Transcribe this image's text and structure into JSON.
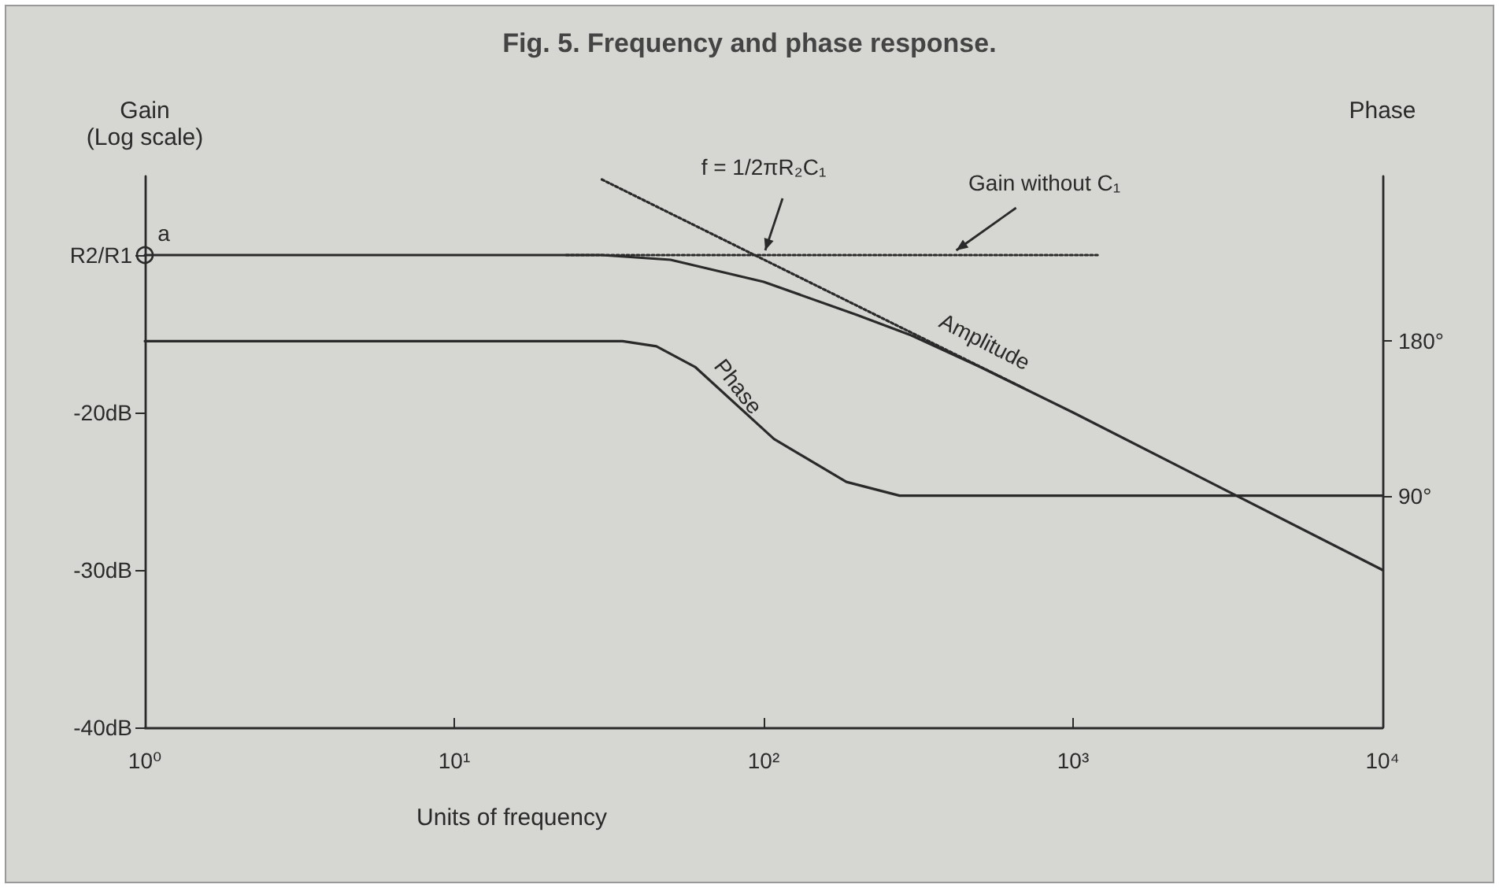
{
  "chart_data": {
    "type": "line",
    "title": "Fig. 5. Frequency and phase response.",
    "xlabel": "Units of frequency",
    "ylabel": "Gain\n(Log scale)",
    "y2label": "Phase",
    "log": "x",
    "xlim": [
      1,
      10000
    ],
    "xticks": [
      {
        "value": 1,
        "label": "10⁰"
      },
      {
        "value": 10,
        "label": "10¹"
      },
      {
        "value": 100,
        "label": "10²"
      },
      {
        "value": 1000,
        "label": "10³"
      },
      {
        "value": 10000,
        "label": "10⁴"
      }
    ],
    "ylim": [
      -40,
      -5
    ],
    "yticks": [
      {
        "value": -40,
        "label": "-40dB"
      },
      {
        "value": -30,
        "label": "-30dB"
      },
      {
        "value": -20,
        "label": "-20dB"
      },
      {
        "value": -10,
        "label": "R2/R1"
      }
    ],
    "y2lim": [
      -45,
      276
    ],
    "y2ticks": [
      {
        "value": 90,
        "label": "90°"
      },
      {
        "value": 180,
        "label": "180°"
      }
    ],
    "grid": false,
    "legend": false,
    "marker": "none",
    "series": [
      {
        "name": "Amplitude",
        "color": "#2a2a2a",
        "line_style": "solid",
        "x": [
          1,
          10,
          30,
          50,
          100,
          200,
          300,
          500,
          1000,
          10000
        ],
        "values": [
          -10,
          -10,
          -10,
          -10.3,
          -11.7,
          -13.8,
          -15.1,
          -17.1,
          -20,
          -30
        ]
      },
      {
        "name": "Phase",
        "color": "#2a2a2a",
        "line_style": "solid",
        "axis": "y2",
        "x": [
          1,
          35,
          45,
          60,
          108,
          185,
          275,
          10000
        ],
        "values": [
          180,
          180,
          177,
          165,
          123,
          98,
          90,
          90
        ]
      },
      {
        "color": "#2a2a2a",
        "line_style": "dotted",
        "x": [
          23,
          1200
        ],
        "values": [
          -10,
          -10
        ]
      },
      {
        "color": "#2a2a2a",
        "line_style": "dotted",
        "x": [
          30,
          700
        ],
        "values": [
          -5.2,
          -18.5
        ]
      }
    ],
    "annotations": [
      {
        "text": "a",
        "x": 1,
        "y": -10
      },
      {
        "text": "f = 1/2πR₂C₁",
        "x": 100,
        "y": -10
      },
      {
        "text": "Gain without C₁",
        "x": 400,
        "y": -10
      }
    ]
  }
}
